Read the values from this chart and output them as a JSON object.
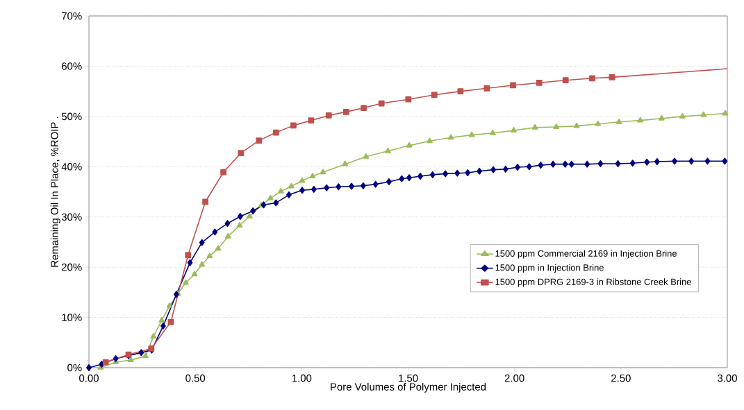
{
  "chart_data": {
    "type": "line",
    "xlabel": "Pore Volumes of Polymer Injected",
    "ylabel": "Remaining Oil In Place, %ROIP  .",
    "xlim": [
      0,
      3
    ],
    "ylim": [
      0,
      70
    ],
    "xticks": [
      {
        "value": 0,
        "label": "0.00"
      },
      {
        "value": 0.5,
        "label": "0.50"
      },
      {
        "value": 1,
        "label": "1.00"
      },
      {
        "value": 1.5,
        "label": "1.50"
      },
      {
        "value": 2,
        "label": "2.00"
      },
      {
        "value": 2.5,
        "label": "2.50"
      },
      {
        "value": 3,
        "label": "3.00"
      }
    ],
    "yticks": [
      {
        "value": 0,
        "label": "0%"
      },
      {
        "value": 10,
        "label": "10%"
      },
      {
        "value": 20,
        "label": "20%"
      },
      {
        "value": 30,
        "label": "30%"
      },
      {
        "value": 40,
        "label": "40%"
      },
      {
        "value": 50,
        "label": "50%"
      },
      {
        "value": 60,
        "label": "60%"
      },
      {
        "value": 70,
        "label": "70%"
      }
    ],
    "grid": "y",
    "legend": "right",
    "line_style": "solid",
    "series": [
      {
        "name": "1500 ppm Commercial 2169 in Injection Brine",
        "color": "#9bbb59",
        "marker": "triangle",
        "x": [
          0.055,
          0.126,
          0.197,
          0.266,
          0.303,
          0.342,
          0.379,
          0.418,
          0.455,
          0.496,
          0.531,
          0.567,
          0.607,
          0.654,
          0.708,
          0.755,
          0.81,
          0.853,
          0.902,
          0.951,
          1.002,
          1.051,
          1.1,
          1.204,
          1.302,
          1.405,
          1.505,
          1.601,
          1.701,
          1.799,
          1.898,
          1.996,
          2.096,
          2.196,
          2.292,
          2.392,
          2.491,
          2.591,
          2.691,
          2.789,
          2.888,
          2.99
        ],
        "values": [
          0,
          1.1,
          1.5,
          2.3,
          6.2,
          9.4,
          12.3,
          14.7,
          16.9,
          18.6,
          20.5,
          22.2,
          23.7,
          26.1,
          28.3,
          30.1,
          32.3,
          33.7,
          35.1,
          36.1,
          37.2,
          38.1,
          38.9,
          40.5,
          42,
          43.1,
          44.2,
          45.1,
          45.8,
          46.3,
          46.7,
          47.2,
          47.8,
          47.9,
          48.1,
          48.5,
          48.9,
          49.2,
          49.6,
          50,
          50.3,
          50.6
        ]
      },
      {
        "name": "1500 ppm in Injection Brine",
        "color": "#000080",
        "marker": "diamond",
        "x": [
          0,
          0.06,
          0.126,
          0.186,
          0.246,
          0.295,
          0.349,
          0.411,
          0.475,
          0.531,
          0.592,
          0.651,
          0.711,
          0.771,
          0.821,
          0.879,
          0.94,
          1.002,
          1.057,
          1.117,
          1.173,
          1.234,
          1.289,
          1.347,
          1.41,
          1.47,
          1.505,
          1.557,
          1.615,
          1.675,
          1.731,
          1.78,
          1.835,
          1.9,
          1.958,
          2.014,
          2.069,
          2.123,
          2.181,
          2.238,
          2.268,
          2.341,
          2.404,
          2.486,
          2.555,
          2.622,
          2.67,
          2.752,
          2.831,
          2.907,
          2.988
        ],
        "values": [
          0,
          0.7,
          1.8,
          2.4,
          3,
          3.5,
          8.3,
          14.6,
          20.9,
          24.9,
          27,
          28.7,
          30.1,
          31.2,
          32.4,
          32.8,
          34.4,
          35.3,
          35.5,
          35.8,
          36,
          36.1,
          36.2,
          36.5,
          37,
          37.6,
          37.8,
          38.1,
          38.4,
          38.6,
          38.7,
          38.8,
          39.1,
          39.4,
          39.5,
          39.9,
          40,
          40.3,
          40.5,
          40.5,
          40.5,
          40.5,
          40.6,
          40.6,
          40.7,
          40.9,
          41,
          41.1,
          41.1,
          41.1,
          41.1
        ]
      },
      {
        "name": "1500 ppm DPRG 2169-3 in Ribstone Creek Brine",
        "color": "#c0504d",
        "marker": "square",
        "x": [
          0.079,
          0.186,
          0.293,
          0.385,
          0.466,
          0.547,
          0.632,
          0.714,
          0.799,
          0.879,
          0.961,
          1.044,
          1.127,
          1.209,
          1.291,
          1.375,
          1.501,
          1.623,
          1.746,
          1.87,
          1.993,
          2.116,
          2.24,
          2.365,
          2.458
        ],
        "values": [
          1.1,
          2.6,
          3.8,
          9.1,
          22.4,
          33,
          38.9,
          42.7,
          45.2,
          46.8,
          48.2,
          49.2,
          50.2,
          50.9,
          51.7,
          52.6,
          53.4,
          54.3,
          55,
          55.6,
          56.2,
          56.7,
          57.2,
          57.6,
          57.8
        ]
      },
      {
        "type": "line",
        "color": "#c0504d",
        "marker": "none",
        "x": [
          2.458,
          3.0
        ],
        "values": [
          57.8,
          59.5
        ]
      }
    ]
  }
}
